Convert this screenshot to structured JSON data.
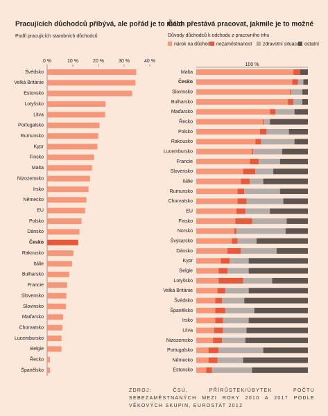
{
  "chart_data": [
    {
      "type": "hbar",
      "title": "Pracujících důchodců přibývá, ale pořád je to málo",
      "subtitle": "Podíl pracujících starobních důchodců",
      "categories": [
        "Švédsko",
        "Velká Británie",
        "Estonsko",
        "Lotyšsko",
        "Litva",
        "Portugalsko",
        "Rumunsko",
        "Kypr",
        "Finsko",
        "Malta",
        "Nizozemsko",
        "Irsko",
        "Německo",
        "EU",
        "Polsko",
        "Dánsko",
        "Česko",
        "Rakousko",
        "Itálie",
        "Bulharsko",
        "Francie",
        "Slovensko",
        "Slovinsko",
        "Maďarsko",
        "Chorvatsko",
        "Lucembursko",
        "Belgie",
        "Řecko",
        "Španělsko"
      ],
      "values": [
        34.7,
        34.4,
        33.1,
        22.8,
        22.6,
        20.4,
        19.9,
        19.6,
        18.3,
        17.5,
        16.7,
        16.1,
        15.3,
        14.8,
        13.4,
        12.6,
        12.1,
        10.2,
        9.7,
        8.6,
        7.8,
        7.5,
        7.3,
        6.2,
        5.9,
        5.6,
        5.6,
        1.1,
        1.1
      ],
      "color": "#f7977a",
      "highlight": "Česko",
      "highlight_color": "#e8593c",
      "xlim": [
        0,
        40
      ],
      "xticks": [
        {
          "value": 0,
          "label": "0 %"
        },
        {
          "value": 10,
          "label": "10 %"
        },
        {
          "value": 20,
          "label": "20 %"
        },
        {
          "value": 30,
          "label": "30 %"
        },
        {
          "value": 40,
          "label": "40 %"
        }
      ]
    },
    {
      "type": "stacked-hbar",
      "title": "Čech přestává pracovat, jakmile je to možné",
      "subtitle": "Důvody důchodců k odchodu z pracovního trhu",
      "xlabel": "100 %",
      "categories": [
        "Malta",
        "Česko",
        "Slovinsko",
        "Bulharsko",
        "Maďarsko",
        "Řecko",
        "Polsko",
        "Rakousko",
        "Lucembursko",
        "Francie",
        "Slovensko",
        "Itálie",
        "Rumunsko",
        "Chorvatsko",
        "EU",
        "Finsko",
        "Norsko",
        "Švýcarsko",
        "Dánsko",
        "Kypr",
        "Belgie",
        "Lotyšsko",
        "Velká Británie",
        "Švédsko",
        "Španělsko",
        "Irsko",
        "Litva",
        "Nizozemsko",
        "Portugalsko",
        "Německo",
        "Estonsko"
      ],
      "highlight": "Česko",
      "xlim": [
        0,
        100
      ],
      "series": [
        {
          "name": "nárok na důchod",
          "color": "#f7977a",
          "values": [
            87,
            86,
            84,
            82,
            66,
            60,
            57,
            53,
            50,
            48,
            42,
            40,
            37,
            37,
            36,
            35,
            34,
            32,
            28,
            22,
            20,
            20,
            19,
            17,
            17,
            17,
            16,
            15,
            11,
            11,
            9
          ]
        },
        {
          "name": "nezaměstnanost",
          "color": "#e8593c",
          "values": [
            6,
            5,
            1,
            5,
            5,
            1,
            6,
            5,
            1,
            8,
            11,
            8,
            6,
            8,
            8,
            15,
            2,
            5,
            12,
            8,
            8,
            22,
            7,
            6,
            9,
            7,
            8,
            8,
            9,
            8,
            5
          ]
        },
        {
          "name": "zdravotní situace",
          "color": "#b3aca8",
          "values": [
            0,
            5,
            10,
            8,
            17,
            5,
            20,
            30,
            26,
            19,
            16,
            12,
            32,
            33,
            22,
            31,
            44,
            17,
            32,
            17,
            19,
            26,
            21,
            20,
            26,
            23,
            21,
            21,
            40,
            23,
            36
          ]
        },
        {
          "name": "ostatní",
          "color": "#5e5551",
          "values": [
            7,
            4,
            5,
            5,
            12,
            34,
            17,
            12,
            23,
            25,
            31,
            40,
            25,
            22,
            34,
            19,
            20,
            46,
            28,
            53,
            53,
            32,
            53,
            57,
            48,
            53,
            55,
            56,
            40,
            58,
            50
          ]
        }
      ]
    }
  ],
  "source": "ZDROJ: ČSÚ, PŘÍRŮSTEK/ÚBYTEK POČTU SEBEZAMĚSTNANÝCH MEZI ROKY 2010 A 2017 PODLE VĚKOVÝCH SKUPIN, EUROSTAT 2012"
}
